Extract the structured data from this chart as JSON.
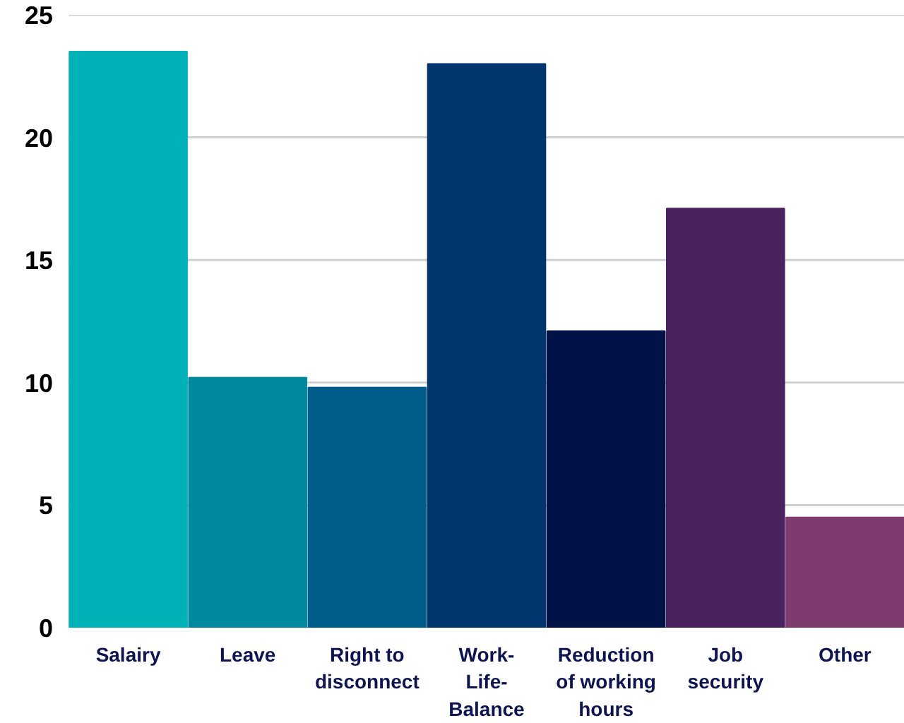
{
  "chart_data": {
    "type": "bar",
    "categories": [
      "Salairy",
      "Leave",
      "Right to disconnect",
      "Work-Life-Balance",
      "Reduction of working hours",
      "Job security",
      "Other"
    ],
    "values": [
      23.5,
      10.2,
      9.8,
      23.0,
      12.1,
      17.1,
      4.5
    ],
    "colors": [
      "#00b2b8",
      "#00899f",
      "#005c8a",
      "#00356d",
      "#001246",
      "#4b2260",
      "#7e3b6e"
    ],
    "ylim": [
      0,
      25
    ],
    "yticks": [
      0,
      5,
      10,
      15,
      20,
      25
    ],
    "grid": "y"
  }
}
